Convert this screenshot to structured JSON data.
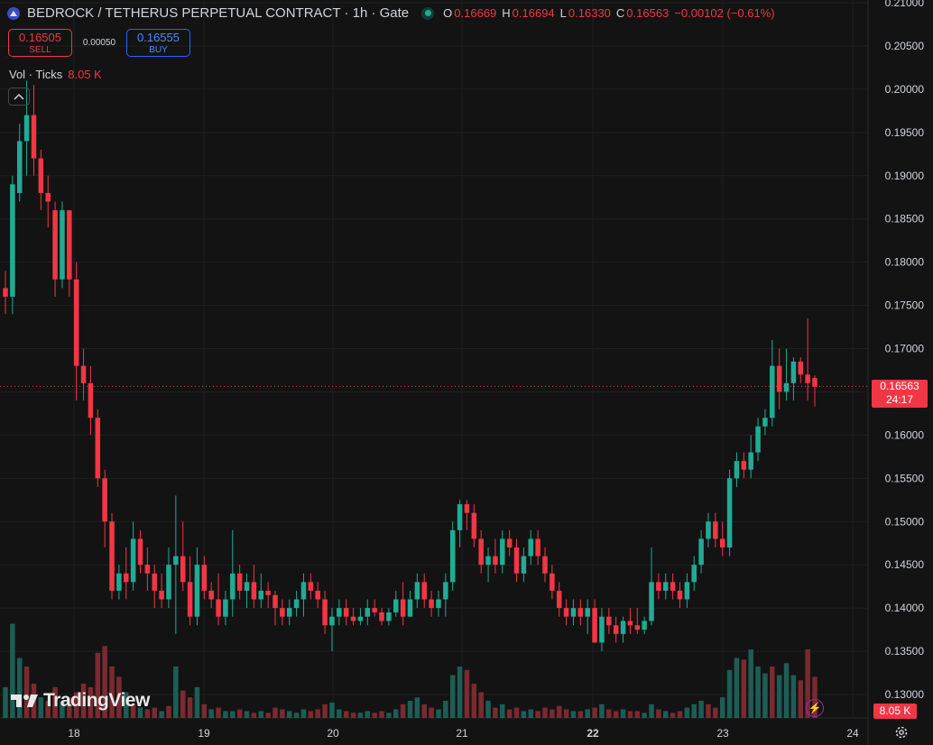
{
  "header": {
    "title": "BEDROCK / TETHERUS PERPETUAL CONTRACT · 1h · Gate",
    "ohlc": [
      {
        "k": "O",
        "v": "0.16669"
      },
      {
        "k": "H",
        "v": "0.16694"
      },
      {
        "k": "L",
        "v": "0.16330"
      },
      {
        "k": "C",
        "v": "0.16563"
      }
    ],
    "change": "−0.00102 (−0.61%)"
  },
  "trade": {
    "sell_price": "0.16505",
    "sell_label": "SELL",
    "spread": "0.00050",
    "buy_price": "0.16555",
    "buy_label": "BUY"
  },
  "volume_legend": {
    "label": "Vol · Ticks",
    "value": "8.05 K"
  },
  "last_price_tag": {
    "price": "0.16563",
    "countdown": "24:17"
  },
  "volume_tag": "8.05 K",
  "brand": "TradingView",
  "colors": {
    "up": "#22ab94",
    "down": "#f23645",
    "up_vol": "#1e5d56",
    "down_vol": "#7a2a30",
    "background": "#131313",
    "grid": "#1f1f1f"
  },
  "icons": {
    "symbol": "bedrock-logo-icon",
    "status": "market-open-dot-icon",
    "collapse": "chevron-up-icon",
    "bolt": "lightning-icon",
    "settings": "gear-icon"
  },
  "chart_data": {
    "type": "candlestick",
    "y_axis": {
      "min": 0.13,
      "max": 0.21,
      "ticks": [
        "0.21000",
        "0.20500",
        "0.20000",
        "0.19500",
        "0.19000",
        "0.18500",
        "0.18000",
        "0.17500",
        "0.17000",
        "0.16500",
        "0.16000",
        "0.15500",
        "0.15000",
        "0.14500",
        "0.14000",
        "0.13500",
        "0.13000"
      ]
    },
    "x_axis": {
      "ticks": [
        "18",
        "19",
        "20",
        "21",
        "22",
        "23",
        "24"
      ],
      "bold": [
        "22"
      ]
    },
    "last_price": 0.16563,
    "candles": [
      {
        "o": 0.177,
        "h": 0.179,
        "l": 0.174,
        "c": 0.176
      },
      {
        "o": 0.176,
        "h": 0.19,
        "l": 0.174,
        "c": 0.189
      },
      {
        "o": 0.188,
        "h": 0.196,
        "l": 0.187,
        "c": 0.194
      },
      {
        "o": 0.194,
        "h": 0.201,
        "l": 0.19,
        "c": 0.197
      },
      {
        "o": 0.197,
        "h": 0.2005,
        "l": 0.19,
        "c": 0.192
      },
      {
        "o": 0.192,
        "h": 0.193,
        "l": 0.186,
        "c": 0.188
      },
      {
        "o": 0.188,
        "h": 0.19,
        "l": 0.184,
        "c": 0.187
      },
      {
        "o": 0.186,
        "h": 0.187,
        "l": 0.176,
        "c": 0.178
      },
      {
        "o": 0.178,
        "h": 0.187,
        "l": 0.177,
        "c": 0.186
      },
      {
        "o": 0.186,
        "h": 0.186,
        "l": 0.176,
        "c": 0.178
      },
      {
        "o": 0.178,
        "h": 0.18,
        "l": 0.164,
        "c": 0.168
      },
      {
        "o": 0.168,
        "h": 0.17,
        "l": 0.164,
        "c": 0.166
      },
      {
        "o": 0.166,
        "h": 0.168,
        "l": 0.16,
        "c": 0.162
      },
      {
        "o": 0.162,
        "h": 0.163,
        "l": 0.154,
        "c": 0.155
      },
      {
        "o": 0.155,
        "h": 0.156,
        "l": 0.147,
        "c": 0.15
      },
      {
        "o": 0.15,
        "h": 0.151,
        "l": 0.141,
        "c": 0.142
      },
      {
        "o": 0.142,
        "h": 0.145,
        "l": 0.141,
        "c": 0.144
      },
      {
        "o": 0.144,
        "h": 0.147,
        "l": 0.141,
        "c": 0.143
      },
      {
        "o": 0.143,
        "h": 0.15,
        "l": 0.142,
        "c": 0.148
      },
      {
        "o": 0.148,
        "h": 0.149,
        "l": 0.144,
        "c": 0.145
      },
      {
        "o": 0.145,
        "h": 0.147,
        "l": 0.142,
        "c": 0.144
      },
      {
        "o": 0.144,
        "h": 0.145,
        "l": 0.14,
        "c": 0.142
      },
      {
        "o": 0.142,
        "h": 0.144,
        "l": 0.14,
        "c": 0.141
      },
      {
        "o": 0.141,
        "h": 0.147,
        "l": 0.14,
        "c": 0.145
      },
      {
        "o": 0.145,
        "h": 0.153,
        "l": 0.137,
        "c": 0.146
      },
      {
        "o": 0.146,
        "h": 0.15,
        "l": 0.142,
        "c": 0.143
      },
      {
        "o": 0.143,
        "h": 0.146,
        "l": 0.138,
        "c": 0.139
      },
      {
        "o": 0.139,
        "h": 0.147,
        "l": 0.138,
        "c": 0.145
      },
      {
        "o": 0.145,
        "h": 0.146,
        "l": 0.141,
        "c": 0.142
      },
      {
        "o": 0.142,
        "h": 0.143,
        "l": 0.14,
        "c": 0.141
      },
      {
        "o": 0.141,
        "h": 0.144,
        "l": 0.138,
        "c": 0.139
      },
      {
        "o": 0.139,
        "h": 0.142,
        "l": 0.138,
        "c": 0.141
      },
      {
        "o": 0.141,
        "h": 0.149,
        "l": 0.139,
        "c": 0.144
      },
      {
        "o": 0.144,
        "h": 0.145,
        "l": 0.141,
        "c": 0.142
      },
      {
        "o": 0.142,
        "h": 0.144,
        "l": 0.14,
        "c": 0.143
      },
      {
        "o": 0.143,
        "h": 0.145,
        "l": 0.14,
        "c": 0.141
      },
      {
        "o": 0.141,
        "h": 0.144,
        "l": 0.14,
        "c": 0.142
      },
      {
        "o": 0.142,
        "h": 0.143,
        "l": 0.14,
        "c": 0.1415
      },
      {
        "o": 0.1415,
        "h": 0.142,
        "l": 0.138,
        "c": 0.14
      },
      {
        "o": 0.14,
        "h": 0.141,
        "l": 0.138,
        "c": 0.139
      },
      {
        "o": 0.139,
        "h": 0.141,
        "l": 0.138,
        "c": 0.14
      },
      {
        "o": 0.14,
        "h": 0.142,
        "l": 0.139,
        "c": 0.141
      },
      {
        "o": 0.141,
        "h": 0.144,
        "l": 0.139,
        "c": 0.143
      },
      {
        "o": 0.143,
        "h": 0.144,
        "l": 0.141,
        "c": 0.142
      },
      {
        "o": 0.142,
        "h": 0.143,
        "l": 0.14,
        "c": 0.141
      },
      {
        "o": 0.141,
        "h": 0.142,
        "l": 0.137,
        "c": 0.138
      },
      {
        "o": 0.138,
        "h": 0.14,
        "l": 0.135,
        "c": 0.139
      },
      {
        "o": 0.139,
        "h": 0.141,
        "l": 0.138,
        "c": 0.14
      },
      {
        "o": 0.14,
        "h": 0.141,
        "l": 0.138,
        "c": 0.139
      },
      {
        "o": 0.139,
        "h": 0.14,
        "l": 0.138,
        "c": 0.1385
      },
      {
        "o": 0.1385,
        "h": 0.14,
        "l": 0.138,
        "c": 0.139
      },
      {
        "o": 0.139,
        "h": 0.141,
        "l": 0.138,
        "c": 0.14
      },
      {
        "o": 0.14,
        "h": 0.141,
        "l": 0.139,
        "c": 0.1395
      },
      {
        "o": 0.1395,
        "h": 0.14,
        "l": 0.138,
        "c": 0.1385
      },
      {
        "o": 0.1385,
        "h": 0.14,
        "l": 0.138,
        "c": 0.1395
      },
      {
        "o": 0.1395,
        "h": 0.142,
        "l": 0.139,
        "c": 0.141
      },
      {
        "o": 0.141,
        "h": 0.143,
        "l": 0.138,
        "c": 0.139
      },
      {
        "o": 0.139,
        "h": 0.142,
        "l": 0.139,
        "c": 0.141
      },
      {
        "o": 0.141,
        "h": 0.144,
        "l": 0.14,
        "c": 0.143
      },
      {
        "o": 0.143,
        "h": 0.144,
        "l": 0.14,
        "c": 0.141
      },
      {
        "o": 0.141,
        "h": 0.142,
        "l": 0.139,
        "c": 0.14
      },
      {
        "o": 0.14,
        "h": 0.142,
        "l": 0.139,
        "c": 0.141
      },
      {
        "o": 0.141,
        "h": 0.144,
        "l": 0.139,
        "c": 0.143
      },
      {
        "o": 0.143,
        "h": 0.15,
        "l": 0.142,
        "c": 0.149
      },
      {
        "o": 0.149,
        "h": 0.1525,
        "l": 0.147,
        "c": 0.152
      },
      {
        "o": 0.152,
        "h": 0.1525,
        "l": 0.149,
        "c": 0.151
      },
      {
        "o": 0.151,
        "h": 0.152,
        "l": 0.147,
        "c": 0.148
      },
      {
        "o": 0.148,
        "h": 0.149,
        "l": 0.144,
        "c": 0.145
      },
      {
        "o": 0.145,
        "h": 0.147,
        "l": 0.143,
        "c": 0.146
      },
      {
        "o": 0.146,
        "h": 0.148,
        "l": 0.144,
        "c": 0.145
      },
      {
        "o": 0.145,
        "h": 0.149,
        "l": 0.144,
        "c": 0.148
      },
      {
        "o": 0.148,
        "h": 0.149,
        "l": 0.146,
        "c": 0.147
      },
      {
        "o": 0.147,
        "h": 0.148,
        "l": 0.143,
        "c": 0.144
      },
      {
        "o": 0.144,
        "h": 0.147,
        "l": 0.143,
        "c": 0.146
      },
      {
        "o": 0.146,
        "h": 0.149,
        "l": 0.145,
        "c": 0.148
      },
      {
        "o": 0.148,
        "h": 0.149,
        "l": 0.145,
        "c": 0.146
      },
      {
        "o": 0.146,
        "h": 0.147,
        "l": 0.143,
        "c": 0.144
      },
      {
        "o": 0.144,
        "h": 0.145,
        "l": 0.141,
        "c": 0.142
      },
      {
        "o": 0.142,
        "h": 0.143,
        "l": 0.139,
        "c": 0.14
      },
      {
        "o": 0.14,
        "h": 0.141,
        "l": 0.138,
        "c": 0.139
      },
      {
        "o": 0.139,
        "h": 0.141,
        "l": 0.138,
        "c": 0.14
      },
      {
        "o": 0.14,
        "h": 0.141,
        "l": 0.138,
        "c": 0.139
      },
      {
        "o": 0.139,
        "h": 0.141,
        "l": 0.137,
        "c": 0.14
      },
      {
        "o": 0.14,
        "h": 0.141,
        "l": 0.136,
        "c": 0.136
      },
      {
        "o": 0.136,
        "h": 0.14,
        "l": 0.135,
        "c": 0.139
      },
      {
        "o": 0.139,
        "h": 0.14,
        "l": 0.137,
        "c": 0.138
      },
      {
        "o": 0.138,
        "h": 0.139,
        "l": 0.136,
        "c": 0.137
      },
      {
        "o": 0.137,
        "h": 0.139,
        "l": 0.136,
        "c": 0.1385
      },
      {
        "o": 0.1385,
        "h": 0.14,
        "l": 0.137,
        "c": 0.138
      },
      {
        "o": 0.138,
        "h": 0.14,
        "l": 0.137,
        "c": 0.1375
      },
      {
        "o": 0.1375,
        "h": 0.139,
        "l": 0.137,
        "c": 0.1385
      },
      {
        "o": 0.1385,
        "h": 0.147,
        "l": 0.138,
        "c": 0.143
      },
      {
        "o": 0.143,
        "h": 0.144,
        "l": 0.141,
        "c": 0.142
      },
      {
        "o": 0.142,
        "h": 0.144,
        "l": 0.141,
        "c": 0.143
      },
      {
        "o": 0.143,
        "h": 0.144,
        "l": 0.141,
        "c": 0.142
      },
      {
        "o": 0.142,
        "h": 0.143,
        "l": 0.14,
        "c": 0.141
      },
      {
        "o": 0.141,
        "h": 0.144,
        "l": 0.14,
        "c": 0.143
      },
      {
        "o": 0.143,
        "h": 0.146,
        "l": 0.142,
        "c": 0.145
      },
      {
        "o": 0.145,
        "h": 0.149,
        "l": 0.144,
        "c": 0.148
      },
      {
        "o": 0.148,
        "h": 0.151,
        "l": 0.147,
        "c": 0.15
      },
      {
        "o": 0.15,
        "h": 0.151,
        "l": 0.147,
        "c": 0.148
      },
      {
        "o": 0.148,
        "h": 0.15,
        "l": 0.146,
        "c": 0.147
      },
      {
        "o": 0.147,
        "h": 0.156,
        "l": 0.146,
        "c": 0.155
      },
      {
        "o": 0.155,
        "h": 0.158,
        "l": 0.154,
        "c": 0.157
      },
      {
        "o": 0.157,
        "h": 0.158,
        "l": 0.155,
        "c": 0.156
      },
      {
        "o": 0.156,
        "h": 0.16,
        "l": 0.155,
        "c": 0.158
      },
      {
        "o": 0.158,
        "h": 0.162,
        "l": 0.157,
        "c": 0.161
      },
      {
        "o": 0.161,
        "h": 0.163,
        "l": 0.16,
        "c": 0.162
      },
      {
        "o": 0.162,
        "h": 0.171,
        "l": 0.161,
        "c": 0.168
      },
      {
        "o": 0.168,
        "h": 0.17,
        "l": 0.163,
        "c": 0.165
      },
      {
        "o": 0.165,
        "h": 0.17,
        "l": 0.164,
        "c": 0.166
      },
      {
        "o": 0.166,
        "h": 0.169,
        "l": 0.164,
        "c": 0.1685
      },
      {
        "o": 0.1685,
        "h": 0.169,
        "l": 0.166,
        "c": 0.167
      },
      {
        "o": 0.167,
        "h": 0.1735,
        "l": 0.164,
        "c": 0.166
      },
      {
        "o": 0.1666,
        "h": 0.1669,
        "l": 0.1633,
        "c": 0.1656
      }
    ],
    "volume": [
      {
        "v": 0.18,
        "up": true
      },
      {
        "v": 0.55,
        "up": true
      },
      {
        "v": 0.35,
        "up": true
      },
      {
        "v": 0.3,
        "up": false
      },
      {
        "v": 0.2,
        "up": false
      },
      {
        "v": 0.12,
        "up": true
      },
      {
        "v": 0.1,
        "up": false
      },
      {
        "v": 0.18,
        "up": false
      },
      {
        "v": 0.1,
        "up": true
      },
      {
        "v": 0.12,
        "up": false
      },
      {
        "v": 0.15,
        "up": false
      },
      {
        "v": 0.2,
        "up": false
      },
      {
        "v": 0.18,
        "up": false
      },
      {
        "v": 0.38,
        "up": false
      },
      {
        "v": 0.42,
        "up": false
      },
      {
        "v": 0.3,
        "up": false
      },
      {
        "v": 0.24,
        "up": false
      },
      {
        "v": 0.15,
        "up": true
      },
      {
        "v": 0.08,
        "up": false
      },
      {
        "v": 0.06,
        "up": true
      },
      {
        "v": 0.05,
        "up": false
      },
      {
        "v": 0.06,
        "up": false
      },
      {
        "v": 0.04,
        "up": true
      },
      {
        "v": 0.07,
        "up": false
      },
      {
        "v": 0.3,
        "up": true
      },
      {
        "v": 0.16,
        "up": false
      },
      {
        "v": 0.12,
        "up": false
      },
      {
        "v": 0.18,
        "up": true
      },
      {
        "v": 0.08,
        "up": false
      },
      {
        "v": 0.05,
        "up": true
      },
      {
        "v": 0.06,
        "up": false
      },
      {
        "v": 0.04,
        "up": true
      },
      {
        "v": 0.04,
        "up": true
      },
      {
        "v": 0.05,
        "up": false
      },
      {
        "v": 0.04,
        "up": true
      },
      {
        "v": 0.03,
        "up": false
      },
      {
        "v": 0.04,
        "up": true
      },
      {
        "v": 0.03,
        "up": false
      },
      {
        "v": 0.06,
        "up": false
      },
      {
        "v": 0.05,
        "up": false
      },
      {
        "v": 0.04,
        "up": true
      },
      {
        "v": 0.03,
        "up": true
      },
      {
        "v": 0.05,
        "up": true
      },
      {
        "v": 0.04,
        "up": false
      },
      {
        "v": 0.05,
        "up": false
      },
      {
        "v": 0.08,
        "up": false
      },
      {
        "v": 0.09,
        "up": true
      },
      {
        "v": 0.05,
        "up": true
      },
      {
        "v": 0.04,
        "up": false
      },
      {
        "v": 0.03,
        "up": false
      },
      {
        "v": 0.03,
        "up": true
      },
      {
        "v": 0.04,
        "up": true
      },
      {
        "v": 0.03,
        "up": false
      },
      {
        "v": 0.04,
        "up": false
      },
      {
        "v": 0.03,
        "up": true
      },
      {
        "v": 0.05,
        "up": true
      },
      {
        "v": 0.08,
        "up": false
      },
      {
        "v": 0.1,
        "up": true
      },
      {
        "v": 0.12,
        "up": true
      },
      {
        "v": 0.08,
        "up": false
      },
      {
        "v": 0.06,
        "up": false
      },
      {
        "v": 0.05,
        "up": true
      },
      {
        "v": 0.1,
        "up": true
      },
      {
        "v": 0.25,
        "up": true
      },
      {
        "v": 0.3,
        "up": true
      },
      {
        "v": 0.28,
        "up": false
      },
      {
        "v": 0.2,
        "up": false
      },
      {
        "v": 0.15,
        "up": false
      },
      {
        "v": 0.1,
        "up": true
      },
      {
        "v": 0.06,
        "up": false
      },
      {
        "v": 0.08,
        "up": true
      },
      {
        "v": 0.05,
        "up": false
      },
      {
        "v": 0.06,
        "up": false
      },
      {
        "v": 0.04,
        "up": true
      },
      {
        "v": 0.05,
        "up": true
      },
      {
        "v": 0.04,
        "up": false
      },
      {
        "v": 0.06,
        "up": false
      },
      {
        "v": 0.05,
        "up": false
      },
      {
        "v": 0.07,
        "up": false
      },
      {
        "v": 0.05,
        "up": false
      },
      {
        "v": 0.04,
        "up": true
      },
      {
        "v": 0.04,
        "up": false
      },
      {
        "v": 0.05,
        "up": true
      },
      {
        "v": 0.06,
        "up": false
      },
      {
        "v": 0.08,
        "up": true
      },
      {
        "v": 0.05,
        "up": false
      },
      {
        "v": 0.04,
        "up": false
      },
      {
        "v": 0.05,
        "up": true
      },
      {
        "v": 0.04,
        "up": false
      },
      {
        "v": 0.04,
        "up": false
      },
      {
        "v": 0.03,
        "up": true
      },
      {
        "v": 0.08,
        "up": true
      },
      {
        "v": 0.05,
        "up": false
      },
      {
        "v": 0.04,
        "up": true
      },
      {
        "v": 0.03,
        "up": false
      },
      {
        "v": 0.04,
        "up": false
      },
      {
        "v": 0.06,
        "up": true
      },
      {
        "v": 0.08,
        "up": true
      },
      {
        "v": 0.1,
        "up": true
      },
      {
        "v": 0.08,
        "up": false
      },
      {
        "v": 0.06,
        "up": false
      },
      {
        "v": 0.12,
        "up": true
      },
      {
        "v": 0.28,
        "up": true
      },
      {
        "v": 0.35,
        "up": true
      },
      {
        "v": 0.34,
        "up": false
      },
      {
        "v": 0.4,
        "up": true
      },
      {
        "v": 0.3,
        "up": true
      },
      {
        "v": 0.26,
        "up": true
      },
      {
        "v": 0.3,
        "up": false
      },
      {
        "v": 0.25,
        "up": true
      },
      {
        "v": 0.32,
        "up": true
      },
      {
        "v": 0.25,
        "up": true
      },
      {
        "v": 0.22,
        "up": false
      },
      {
        "v": 0.4,
        "up": false
      },
      {
        "v": 0.24,
        "up": false
      }
    ]
  }
}
